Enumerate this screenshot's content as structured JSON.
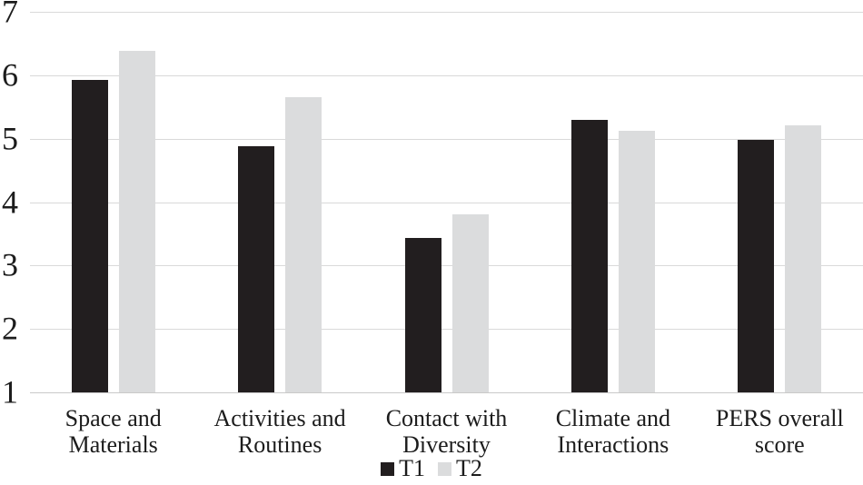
{
  "chart_data": {
    "type": "bar",
    "title": "",
    "xlabel": "",
    "ylabel": "",
    "categories": [
      "Space and Materials",
      "Activities and Routines",
      "Contact with Diversity",
      "Climate and Interactions",
      "PERS overall score"
    ],
    "series": [
      {
        "name": "T1",
        "color": "#221e1f",
        "values": [
          5.92,
          4.88,
          3.44,
          5.29,
          4.98
        ]
      },
      {
        "name": "T2",
        "color": "#dbdcdd",
        "values": [
          6.39,
          5.66,
          3.8,
          5.12,
          5.21
        ]
      }
    ],
    "ylim": [
      1,
      7
    ],
    "yticks": [
      1,
      2,
      3,
      4,
      5,
      6,
      7
    ],
    "grid": true,
    "legend_position": "bottom"
  },
  "colors": {
    "background": "#ffffff",
    "gridline": "#d9d9d9",
    "axis_line": "#c9c9c9",
    "text": "#1c1c1c"
  }
}
